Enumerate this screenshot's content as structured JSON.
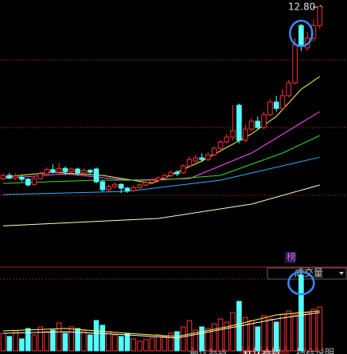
{
  "chart_data": {
    "type": "candlestick",
    "price_label": "12.80",
    "badge": "榜",
    "volume_title": "成交量",
    "tabs": [
      "最优参数",
      "默认参数",
      "指标说明"
    ],
    "active_tab": 1,
    "up_color": "#ff3232",
    "down_color": "#54fcfc",
    "ylim": [
      5.5,
      13.0
    ],
    "vlim": [
      0,
      100
    ],
    "open": [
      7.4,
      7.5,
      7.42,
      7.45,
      7.38,
      7.22,
      7.4,
      7.55,
      7.68,
      7.6,
      7.72,
      7.62,
      7.7,
      7.58,
      7.66,
      7.7,
      7.3,
      7.05,
      7.15,
      7.22,
      7.1,
      7.02,
      7.12,
      7.2,
      7.28,
      7.35,
      7.42,
      7.5,
      7.6,
      7.58,
      7.8,
      7.95,
      8.05,
      8.0,
      8.15,
      8.35,
      8.55,
      8.7,
      9.7,
      8.6,
      8.95,
      9.2,
      9.0,
      9.4,
      9.8,
      9.6,
      10.0,
      10.4,
      12.2,
      11.5,
      11.8,
      12.2
    ],
    "close": [
      7.5,
      7.42,
      7.48,
      7.38,
      7.2,
      7.4,
      7.55,
      7.68,
      7.6,
      7.72,
      7.62,
      7.7,
      7.58,
      7.66,
      7.6,
      7.3,
      7.05,
      7.15,
      7.22,
      7.1,
      7.02,
      7.12,
      7.2,
      7.28,
      7.35,
      7.42,
      7.5,
      7.6,
      7.55,
      7.8,
      8.0,
      8.05,
      8.0,
      8.15,
      8.35,
      8.55,
      8.7,
      8.9,
      8.6,
      8.95,
      9.2,
      9.0,
      9.4,
      9.8,
      9.6,
      10.0,
      10.4,
      11.6,
      11.6,
      11.8,
      12.2,
      12.8
    ],
    "high": [
      7.55,
      7.58,
      7.55,
      7.52,
      7.42,
      7.45,
      7.62,
      7.75,
      7.85,
      7.9,
      7.78,
      7.75,
      7.74,
      7.72,
      7.7,
      7.75,
      7.35,
      7.2,
      7.28,
      7.26,
      7.14,
      7.18,
      7.25,
      7.32,
      7.4,
      7.48,
      7.55,
      7.65,
      7.66,
      7.85,
      8.1,
      8.15,
      8.2,
      8.22,
      8.4,
      8.6,
      8.8,
      9.7,
      9.75,
      9.1,
      9.3,
      9.35,
      9.5,
      9.9,
      10.0,
      10.2,
      10.5,
      11.8,
      12.25,
      12.0,
      12.4,
      12.8
    ],
    "low": [
      7.35,
      7.38,
      7.35,
      7.3,
      7.15,
      7.18,
      7.36,
      7.5,
      7.55,
      7.55,
      7.5,
      7.55,
      7.5,
      7.52,
      7.52,
      7.25,
      6.98,
      7.0,
      7.1,
      6.95,
      6.95,
      6.98,
      7.08,
      7.15,
      7.22,
      7.3,
      7.38,
      7.45,
      7.48,
      7.55,
      7.75,
      7.9,
      7.92,
      7.95,
      8.1,
      8.3,
      8.5,
      8.6,
      8.5,
      8.55,
      8.9,
      8.95,
      8.95,
      9.35,
      9.5,
      9.55,
      9.95,
      10.35,
      11.4,
      11.4,
      11.7,
      12.1
    ],
    "volume": [
      22,
      18,
      25,
      15,
      28,
      20,
      30,
      24,
      26,
      35,
      22,
      30,
      28,
      25,
      20,
      38,
      32,
      24,
      20,
      18,
      22,
      15,
      12,
      14,
      16,
      20,
      18,
      22,
      24,
      30,
      38,
      26,
      30,
      28,
      34,
      40,
      36,
      48,
      62,
      42,
      38,
      30,
      44,
      40,
      36,
      46,
      50,
      45,
      95,
      48,
      52,
      55
    ],
    "ma_lines": [
      {
        "color": "#ffff40",
        "x": [
          0,
          8,
          16,
          24,
          32,
          40,
          44,
          48,
          51
        ],
        "values": [
          7.45,
          7.6,
          7.5,
          7.25,
          7.95,
          8.8,
          9.35,
          10.2,
          10.6
        ]
      },
      {
        "color": "#ff50ff",
        "x": [
          0,
          10,
          20,
          30,
          40,
          51
        ],
        "values": [
          7.4,
          7.55,
          7.35,
          7.4,
          8.2,
          9.5
        ]
      },
      {
        "color": "#30e030",
        "x": [
          0,
          15,
          25,
          35,
          45,
          51
        ],
        "values": [
          7.25,
          7.35,
          7.35,
          7.5,
          8.2,
          8.75
        ]
      },
      {
        "color": "#30b0ff",
        "x": [
          0,
          20,
          35,
          51
        ],
        "values": [
          6.9,
          7.0,
          7.35,
          8.07
        ]
      },
      {
        "color": "#ffffc0",
        "x": [
          0,
          25,
          40,
          51
        ],
        "values": [
          5.92,
          6.15,
          6.6,
          7.2
        ]
      }
    ],
    "vol_ma_lines": [
      {
        "color": "#ffff40",
        "x": [
          0,
          10,
          20,
          28,
          36,
          44,
          51
        ],
        "values": [
          25,
          28,
          22,
          18,
          30,
          45,
          50
        ]
      },
      {
        "color": "#ffffff",
        "x": [
          0,
          10,
          20,
          28,
          36,
          44,
          51
        ],
        "values": [
          22,
          24,
          20,
          16,
          28,
          40,
          48
        ]
      }
    ]
  }
}
